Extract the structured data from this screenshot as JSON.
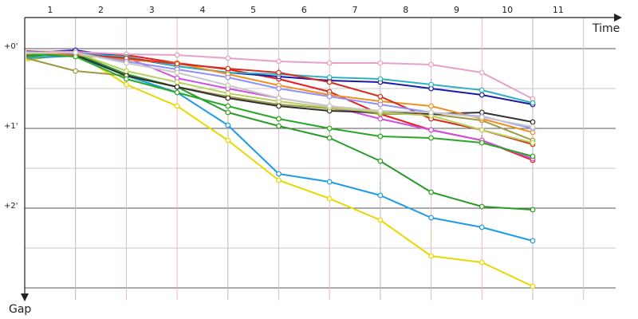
{
  "chart_data": {
    "type": "line",
    "title": "",
    "xlabel": "Time",
    "ylabel": "Gap",
    "x_ticks": [
      "1",
      "2",
      "3",
      "4",
      "5",
      "6",
      "7",
      "8",
      "9",
      "10",
      "11"
    ],
    "y_ticks": [
      "+0'",
      "+1'",
      "+2'"
    ],
    "xlim": [
      0,
      12
    ],
    "ylim": [
      0,
      3
    ],
    "grid": true,
    "legend": "none",
    "series": [
      {
        "color": "#e8d800",
        "values": [
          0.15,
          0.05,
          0.45,
          0.72,
          1.15,
          1.65,
          1.88,
          2.15,
          2.6,
          2.68,
          2.98
        ]
      },
      {
        "color": "#1e9be6",
        "values": [
          0.12,
          0.09,
          0.34,
          0.55,
          0.96,
          1.57,
          1.67,
          1.84,
          2.12,
          2.24,
          2.41
        ]
      },
      {
        "color": "#2a9a2a",
        "values": [
          0.1,
          0.06,
          0.32,
          0.48,
          0.8,
          0.97,
          1.12,
          1.41,
          1.8,
          1.98,
          2.02
        ]
      },
      {
        "color": "#e61e1e",
        "values": [
          0.08,
          0.05,
          0.08,
          0.18,
          0.26,
          0.38,
          0.54,
          0.82,
          1.02,
          1.15,
          1.4
        ]
      },
      {
        "color": "#1a1aa8",
        "values": [
          0.05,
          0.02,
          0.11,
          0.22,
          0.3,
          0.35,
          0.4,
          0.42,
          0.5,
          0.58,
          0.7
        ]
      },
      {
        "color": "#e8a0c8",
        "values": [
          0.03,
          0.04,
          0.07,
          0.08,
          0.12,
          0.16,
          0.18,
          0.18,
          0.2,
          0.3,
          0.63
        ]
      },
      {
        "color": "#9a9a44",
        "values": [
          0.12,
          0.28,
          0.34,
          0.48,
          0.6,
          0.7,
          0.75,
          0.82,
          0.82,
          0.9,
          1.15
        ]
      },
      {
        "color": "#d050e0",
        "values": [
          0.05,
          0.05,
          0.11,
          0.37,
          0.5,
          0.62,
          0.72,
          0.88,
          1.02,
          1.15,
          1.38
        ]
      },
      {
        "color": "#30b0c0",
        "values": [
          0.06,
          0.06,
          0.1,
          0.22,
          0.3,
          0.32,
          0.36,
          0.38,
          0.45,
          0.52,
          0.68
        ]
      },
      {
        "color": "#303030",
        "values": [
          0.04,
          0.08,
          0.34,
          0.48,
          0.62,
          0.72,
          0.78,
          0.8,
          0.82,
          0.8,
          0.92
        ]
      },
      {
        "color": "#f09020",
        "values": [
          0.04,
          0.08,
          0.14,
          0.18,
          0.32,
          0.46,
          0.58,
          0.66,
          0.72,
          0.88,
          1.05
        ]
      },
      {
        "color": "#d03020",
        "values": [
          0.03,
          0.07,
          0.12,
          0.19,
          0.25,
          0.3,
          0.42,
          0.6,
          0.88,
          1.02,
          1.2
        ]
      },
      {
        "color": "#9090ff",
        "values": [
          0.04,
          0.06,
          0.16,
          0.26,
          0.36,
          0.5,
          0.6,
          0.7,
          0.8,
          0.85,
          1.0
        ]
      },
      {
        "color": "#28a828",
        "values": [
          0.07,
          0.1,
          0.38,
          0.55,
          0.72,
          0.88,
          1.0,
          1.1,
          1.12,
          1.18,
          1.35
        ]
      },
      {
        "color": "#b8d060",
        "values": [
          0.06,
          0.05,
          0.28,
          0.42,
          0.56,
          0.66,
          0.74,
          0.8,
          0.84,
          1.02,
          1.18
        ]
      },
      {
        "color": "#c8c8c8",
        "values": [
          0.05,
          0.05,
          0.18,
          0.3,
          0.46,
          0.62,
          0.72,
          0.78,
          0.8,
          0.86,
          0.98
        ]
      }
    ]
  }
}
